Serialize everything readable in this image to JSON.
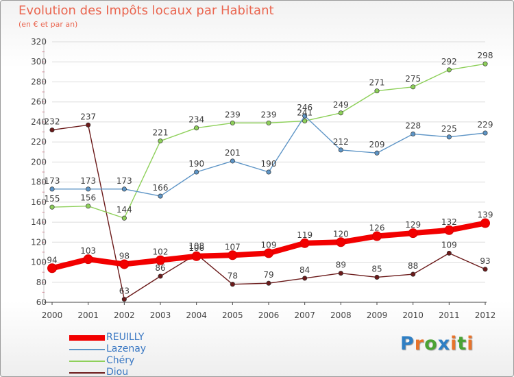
{
  "title": "Evolution des Impôts locaux par Habitant",
  "subtitle": "(en € et par an)",
  "logo": {
    "text": "Proxiti",
    "letter_colors": [
      "#2f7fc4",
      "#e8732a",
      "#4aa335",
      "#2f7fc4",
      "#e8732a",
      "#4aa335",
      "#e8732a"
    ]
  },
  "colors": {
    "title": "#ea6650",
    "axis": "#444444",
    "gridline": "#dcdcdc",
    "tick": "#cf4f66"
  },
  "chart_data": {
    "type": "line",
    "x": [
      "2000",
      "2001",
      "2002",
      "2003",
      "2004",
      "2005",
      "2006",
      "2007",
      "2008",
      "2009",
      "2010",
      "2011",
      "2012"
    ],
    "ylim": [
      60,
      320
    ],
    "yticks": [
      60,
      80,
      100,
      120,
      140,
      160,
      180,
      200,
      220,
      240,
      260,
      280,
      300,
      320
    ],
    "grid": true,
    "legend_position": "bottom-left",
    "series": [
      {
        "name": "Diou",
        "color": "#6b1a1a",
        "values": [
          232,
          237,
          63,
          86,
          108,
          78,
          79,
          84,
          89,
          85,
          88,
          109,
          93
        ]
      },
      {
        "name": "Chéry",
        "color": "#8ed05a",
        "values": [
          155,
          156,
          144,
          221,
          234,
          239,
          239,
          241,
          249,
          271,
          275,
          292,
          298
        ]
      },
      {
        "name": "Lazenay",
        "color": "#5e95c6",
        "values": [
          173,
          173,
          173,
          166,
          190,
          201,
          190,
          246,
          212,
          209,
          228,
          225,
          229
        ]
      },
      {
        "name": "REUILLY",
        "color": "#f20000",
        "values": [
          94,
          103,
          98,
          102,
          106,
          107,
          109,
          119,
          120,
          126,
          129,
          132,
          139
        ]
      }
    ],
    "legend_order": [
      "REUILLY",
      "Lazenay",
      "Chéry",
      "Diou"
    ]
  }
}
